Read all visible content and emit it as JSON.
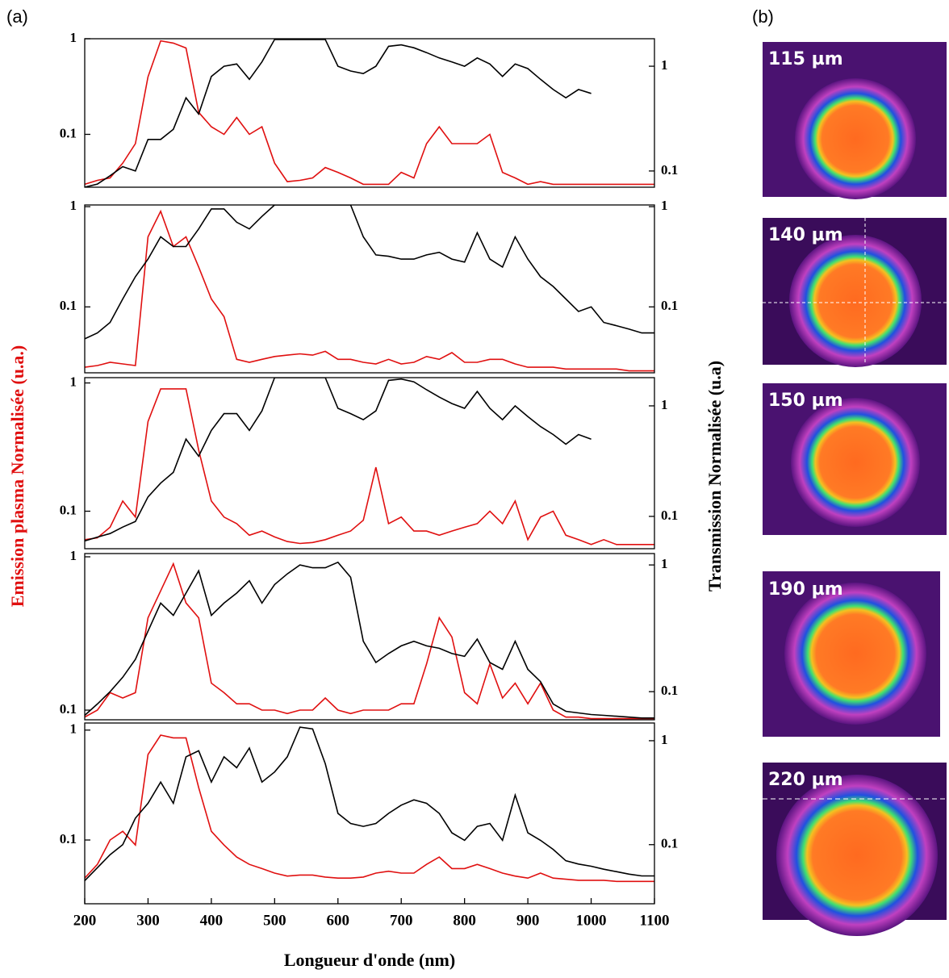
{
  "panel_labels": {
    "a": "(a)",
    "b": "(b)"
  },
  "axis_labels": {
    "x": "Longueur d'onde (nm)",
    "y": "Emission plasma Normalisée (u.a.)",
    "y2": "Transmission Normalisée (u.a)"
  },
  "images": [
    "115 µm",
    "140 µm",
    "150 µm",
    "190 µm",
    "220 µm"
  ],
  "chart_data": [
    {
      "type": "line",
      "log_scale": true,
      "xlim": [
        200,
        1100
      ],
      "ylim": [
        0.028,
        1
      ],
      "yticks": [
        0.1,
        1
      ],
      "y2lim": [
        0.07,
        1.83
      ],
      "y2ticks": [
        0.1,
        1
      ],
      "x": [
        200,
        220,
        240,
        260,
        280,
        300,
        320,
        340,
        360,
        380,
        400,
        420,
        440,
        460,
        480,
        500,
        520,
        540,
        560,
        580,
        600,
        620,
        640,
        660,
        680,
        700,
        720,
        740,
        760,
        780,
        800,
        820,
        840,
        860,
        880,
        900,
        920,
        940,
        960,
        980,
        1000,
        1020,
        1040,
        1060,
        1080,
        1100
      ],
      "series": [
        {
          "color": "#e01010",
          "values": [
            0.03,
            0.033,
            0.035,
            0.05,
            0.08,
            0.4,
            0.95,
            0.9,
            0.8,
            0.17,
            0.12,
            0.1,
            0.15,
            0.1,
            0.12,
            0.05,
            0.032,
            0.033,
            0.035,
            0.045,
            0.04,
            0.035,
            0.03,
            0.03,
            0.03,
            0.04,
            0.035,
            0.08,
            0.12,
            0.08,
            0.08,
            0.08,
            0.1,
            0.04,
            0.035,
            0.03,
            0.032,
            0.03,
            0.03,
            0.03,
            0.03,
            0.03,
            0.03,
            0.03,
            0.03,
            0.03
          ]
        },
        {
          "color": "#000000",
          "axis": "y2",
          "values": [
            0.07,
            0.075,
            0.09,
            0.11,
            0.1,
            0.2,
            0.2,
            0.25,
            0.5,
            0.35,
            0.8,
            1.0,
            1.05,
            0.75,
            1.1,
            1.8,
            1.8,
            1.8,
            1.8,
            1.8,
            1.0,
            0.9,
            0.85,
            1.0,
            1.55,
            1.6,
            1.5,
            1.35,
            1.2,
            1.1,
            1.0,
            1.2,
            1.05,
            0.8,
            1.05,
            0.95,
            0.75,
            0.6,
            0.5,
            0.6,
            0.55,
            null,
            null,
            null,
            null,
            null
          ]
        }
      ]
    },
    {
      "type": "line",
      "log_scale": true,
      "xlim": [
        200,
        1100
      ],
      "ylim": [
        0.022,
        1.04
      ],
      "yticks": [
        0.1,
        1
      ],
      "y2lim": [
        0.022,
        1.04
      ],
      "y2ticks": [
        0.1,
        1
      ],
      "x": [
        200,
        220,
        240,
        260,
        280,
        300,
        320,
        340,
        360,
        380,
        400,
        420,
        440,
        460,
        480,
        500,
        520,
        540,
        560,
        580,
        600,
        620,
        640,
        660,
        680,
        700,
        720,
        740,
        760,
        780,
        800,
        820,
        840,
        860,
        880,
        900,
        920,
        940,
        960,
        980,
        1000,
        1020,
        1040,
        1060,
        1080,
        1100
      ],
      "series": [
        {
          "color": "#e01010",
          "values": [
            0.025,
            0.026,
            0.028,
            0.027,
            0.026,
            0.5,
            0.9,
            0.4,
            0.5,
            0.25,
            0.12,
            0.08,
            0.03,
            0.028,
            0.03,
            0.032,
            0.033,
            0.034,
            0.033,
            0.036,
            0.03,
            0.03,
            0.028,
            0.027,
            0.03,
            0.027,
            0.028,
            0.032,
            0.03,
            0.035,
            0.028,
            0.028,
            0.03,
            0.03,
            0.027,
            0.025,
            0.025,
            0.025,
            0.024,
            0.024,
            0.024,
            0.024,
            0.024,
            0.023,
            0.023,
            0.023
          ]
        },
        {
          "color": "#000000",
          "axis": "y2",
          "values": [
            0.048,
            0.055,
            0.07,
            0.12,
            0.2,
            0.3,
            0.5,
            0.4,
            0.4,
            0.6,
            0.95,
            0.95,
            0.7,
            0.6,
            0.8,
            1.04,
            1.04,
            1.04,
            1.04,
            1.04,
            1.04,
            1.04,
            0.5,
            0.33,
            0.32,
            0.3,
            0.3,
            0.33,
            0.35,
            0.3,
            0.28,
            0.55,
            0.3,
            0.25,
            0.5,
            0.3,
            0.2,
            0.16,
            0.12,
            0.09,
            0.1,
            0.07,
            0.065,
            0.06,
            0.055,
            0.055
          ]
        }
      ]
    },
    {
      "type": "line",
      "log_scale": true,
      "xlim": [
        200,
        1100
      ],
      "ylim": [
        0.051,
        1.1
      ],
      "yticks": [
        0.1,
        1
      ],
      "y2lim": [
        0.051,
        1.8
      ],
      "y2ticks": [
        0.1,
        1
      ],
      "x": [
        200,
        220,
        240,
        260,
        280,
        300,
        320,
        340,
        360,
        380,
        400,
        420,
        440,
        460,
        480,
        500,
        520,
        540,
        560,
        580,
        600,
        620,
        640,
        660,
        680,
        700,
        720,
        740,
        760,
        780,
        800,
        820,
        840,
        860,
        880,
        900,
        920,
        940,
        960,
        980,
        1000,
        1020,
        1040,
        1060,
        1080,
        1100
      ],
      "series": [
        {
          "color": "#e01010",
          "values": [
            0.06,
            0.062,
            0.075,
            0.12,
            0.09,
            0.5,
            0.9,
            0.9,
            0.9,
            0.3,
            0.12,
            0.09,
            0.08,
            0.065,
            0.07,
            0.063,
            0.058,
            0.056,
            0.057,
            0.06,
            0.065,
            0.07,
            0.085,
            0.22,
            0.08,
            0.09,
            0.07,
            0.07,
            0.065,
            0.07,
            0.075,
            0.08,
            0.1,
            0.08,
            0.12,
            0.06,
            0.09,
            0.1,
            0.065,
            0.06,
            0.055,
            0.06,
            0.055,
            0.055,
            0.055,
            0.055
          ]
        },
        {
          "color": "#000000",
          "axis": "y2",
          "values": [
            0.06,
            0.065,
            0.07,
            0.08,
            0.09,
            0.15,
            0.2,
            0.25,
            0.5,
            0.35,
            0.6,
            0.85,
            0.85,
            0.6,
            0.9,
            1.8,
            1.8,
            1.8,
            1.8,
            1.8,
            0.95,
            0.85,
            0.75,
            0.9,
            1.7,
            1.75,
            1.65,
            1.4,
            1.2,
            1.05,
            0.95,
            1.35,
            0.95,
            0.75,
            1.0,
            0.8,
            0.65,
            0.55,
            0.45,
            0.55,
            0.5,
            null,
            null,
            null,
            null,
            null
          ]
        }
      ]
    },
    {
      "type": "line",
      "log_scale": true,
      "xlim": [
        200,
        1100
      ],
      "ylim": [
        0.0865,
        1.05
      ],
      "yticks": [
        0.1,
        1
      ],
      "y2lim": [
        0.06,
        1.23
      ],
      "y2ticks": [
        0.1,
        1
      ],
      "x": [
        200,
        220,
        240,
        260,
        280,
        300,
        320,
        340,
        360,
        380,
        400,
        420,
        440,
        460,
        480,
        500,
        520,
        540,
        560,
        580,
        600,
        620,
        640,
        660,
        680,
        700,
        720,
        740,
        760,
        780,
        800,
        820,
        840,
        860,
        880,
        900,
        920,
        940,
        960,
        980,
        1000,
        1020,
        1040,
        1060,
        1080,
        1100
      ],
      "series": [
        {
          "color": "#e01010",
          "values": [
            0.09,
            0.1,
            0.13,
            0.12,
            0.13,
            0.4,
            0.6,
            0.9,
            0.5,
            0.4,
            0.15,
            0.13,
            0.11,
            0.11,
            0.1,
            0.1,
            0.095,
            0.1,
            0.1,
            0.12,
            0.1,
            0.095,
            0.1,
            0.1,
            0.1,
            0.11,
            0.11,
            0.2,
            0.4,
            0.3,
            0.13,
            0.11,
            0.2,
            0.12,
            0.15,
            0.11,
            0.15,
            0.1,
            0.09,
            0.09,
            0.088,
            0.088,
            0.088,
            0.088,
            0.088,
            0.088
          ]
        },
        {
          "color": "#000000",
          "axis": "y2",
          "values": [
            0.065,
            0.08,
            0.1,
            0.13,
            0.18,
            0.3,
            0.5,
            0.4,
            0.6,
            0.9,
            0.4,
            0.5,
            0.6,
            0.75,
            0.5,
            0.7,
            0.85,
            1.0,
            0.95,
            0.95,
            1.05,
            0.8,
            0.25,
            0.17,
            0.2,
            0.23,
            0.25,
            0.23,
            0.22,
            0.2,
            0.19,
            0.26,
            0.17,
            0.15,
            0.25,
            0.15,
            0.12,
            0.08,
            0.07,
            0.068,
            0.066,
            0.065,
            0.064,
            0.063,
            0.062,
            0.062
          ]
        }
      ]
    },
    {
      "type": "line",
      "log_scale": true,
      "xlim": [
        200,
        1100
      ],
      "ylim": [
        0.0263,
        1.16
      ],
      "yticks": [
        0.1,
        1
      ],
      "y2lim": [
        0.027,
        1.48
      ],
      "y2ticks": [
        0.1,
        1
      ],
      "xticks": [
        200,
        300,
        400,
        500,
        600,
        700,
        800,
        900,
        1000,
        1100
      ],
      "x": [
        200,
        220,
        240,
        260,
        280,
        300,
        320,
        340,
        360,
        380,
        400,
        420,
        440,
        460,
        480,
        500,
        520,
        540,
        560,
        580,
        600,
        620,
        640,
        660,
        680,
        700,
        720,
        740,
        760,
        780,
        800,
        820,
        840,
        860,
        880,
        900,
        920,
        940,
        960,
        980,
        1000,
        1020,
        1040,
        1060,
        1080,
        1100
      ],
      "series": [
        {
          "color": "#e01010",
          "values": [
            0.045,
            0.06,
            0.1,
            0.12,
            0.09,
            0.6,
            0.9,
            0.85,
            0.85,
            0.3,
            0.12,
            0.09,
            0.07,
            0.06,
            0.055,
            0.05,
            0.047,
            0.048,
            0.048,
            0.046,
            0.045,
            0.045,
            0.046,
            0.05,
            0.052,
            0.05,
            0.05,
            0.06,
            0.07,
            0.055,
            0.055,
            0.06,
            0.055,
            0.05,
            0.047,
            0.045,
            0.05,
            0.045,
            0.044,
            0.043,
            0.043,
            0.043,
            0.042,
            0.042,
            0.042,
            0.042
          ]
        },
        {
          "color": "#000000",
          "axis": "y2",
          "values": [
            0.045,
            0.06,
            0.08,
            0.1,
            0.18,
            0.25,
            0.4,
            0.25,
            0.7,
            0.8,
            0.4,
            0.7,
            0.55,
            0.85,
            0.4,
            0.5,
            0.7,
            1.35,
            1.3,
            0.6,
            0.2,
            0.16,
            0.15,
            0.16,
            0.2,
            0.24,
            0.27,
            0.25,
            0.2,
            0.13,
            0.11,
            0.15,
            0.16,
            0.11,
            0.3,
            0.13,
            0.11,
            0.09,
            0.07,
            0.065,
            0.062,
            0.058,
            0.055,
            0.052,
            0.05,
            0.05
          ]
        }
      ]
    }
  ]
}
